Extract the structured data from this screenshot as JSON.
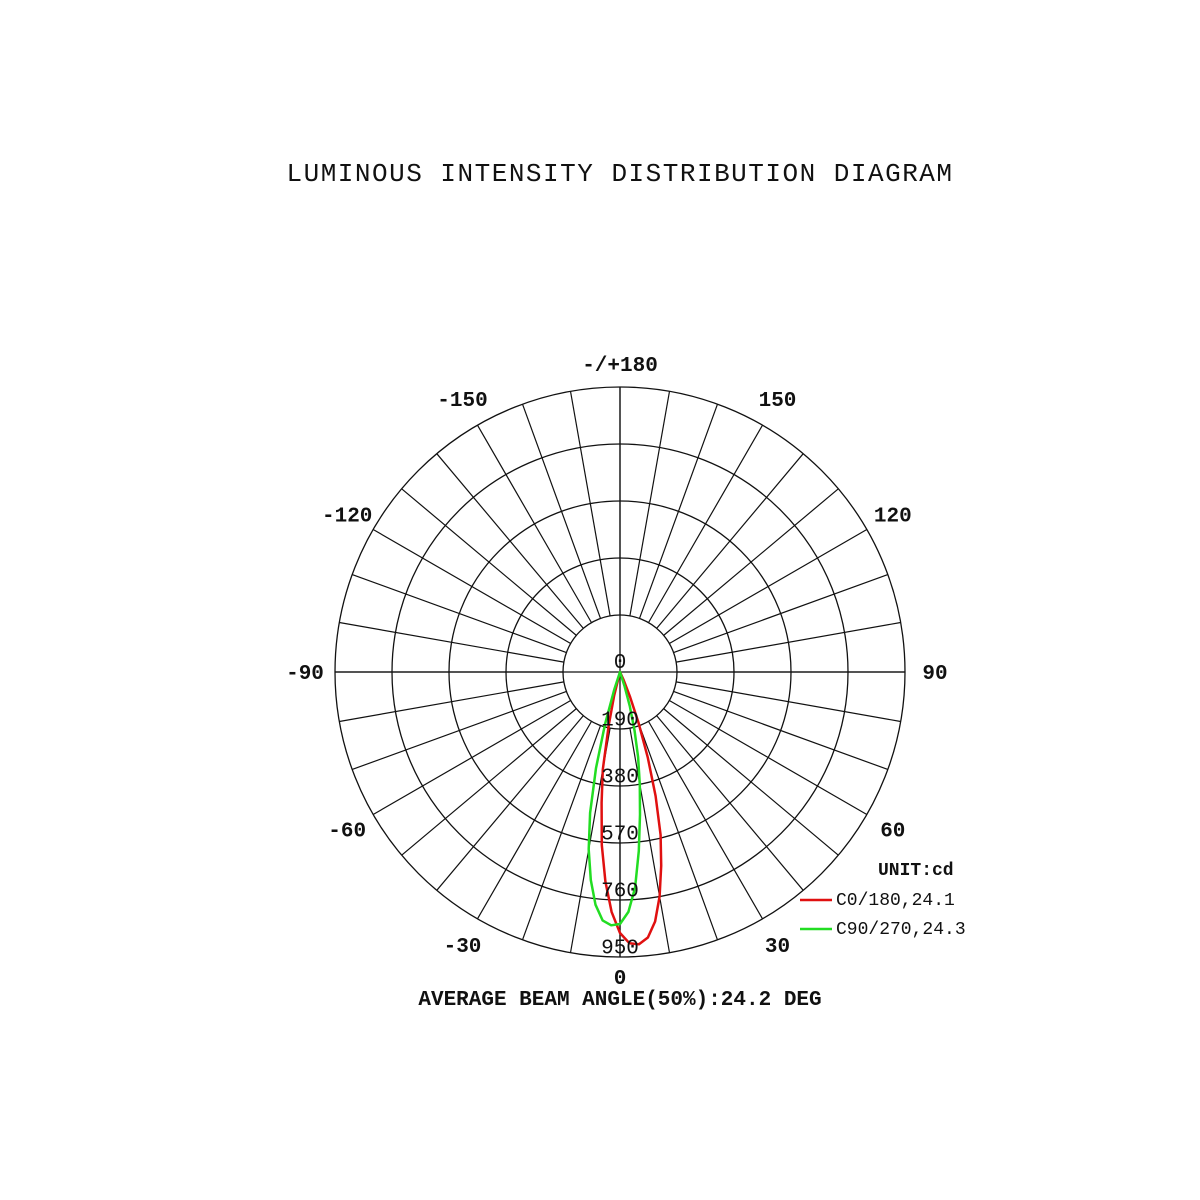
{
  "chart_data": {
    "type": "polar-line",
    "title": "LUMINOUS INTENSITY DISTRIBUTION DIAGRAM",
    "unit_label": "UNIT:cd",
    "footer": "AVERAGE BEAM ANGLE(50%):24.2 DEG",
    "radial_ticks": [
      "0",
      "190",
      "380",
      "570",
      "760",
      "950"
    ],
    "radial_range": [
      0,
      950
    ],
    "angle_step_deg": 10,
    "angle_labels": [
      {
        "angle": 180,
        "text": "-/+180"
      },
      {
        "angle": -150,
        "text": "-150"
      },
      {
        "angle": 150,
        "text": "150"
      },
      {
        "angle": -120,
        "text": "-120"
      },
      {
        "angle": 120,
        "text": "120"
      },
      {
        "angle": -90,
        "text": "-90"
      },
      {
        "angle": 90,
        "text": "90"
      },
      {
        "angle": -60,
        "text": "-60"
      },
      {
        "angle": 60,
        "text": "60"
      },
      {
        "angle": -30,
        "text": "-30"
      },
      {
        "angle": 30,
        "text": "30"
      },
      {
        "angle": 0,
        "text": "0"
      }
    ],
    "grid": true,
    "legend_position": "bottom-right",
    "series": [
      {
        "name": "C0/180,24.1",
        "color": "#e01010",
        "angles": [
          -14,
          -12,
          -10,
          -8,
          -6,
          -4,
          -2,
          0,
          2,
          4,
          6,
          8,
          10,
          12,
          14,
          16,
          18,
          20,
          22,
          24
        ],
        "values": [
          80,
          180,
          330,
          440,
          580,
          700,
          800,
          870,
          905,
          910,
          890,
          840,
          760,
          660,
          560,
          430,
          300,
          180,
          90,
          30
        ]
      },
      {
        "name": "C90/270,24.3",
        "color": "#22dd22",
        "angles": [
          -18,
          -16,
          -14,
          -12,
          -10,
          -8,
          -6,
          -4,
          -2,
          0,
          2,
          4,
          6,
          8,
          10,
          12,
          14,
          16,
          18
        ],
        "values": [
          60,
          180,
          330,
          480,
          600,
          700,
          780,
          830,
          845,
          840,
          800,
          720,
          600,
          480,
          380,
          290,
          200,
          120,
          50
        ]
      }
    ]
  }
}
